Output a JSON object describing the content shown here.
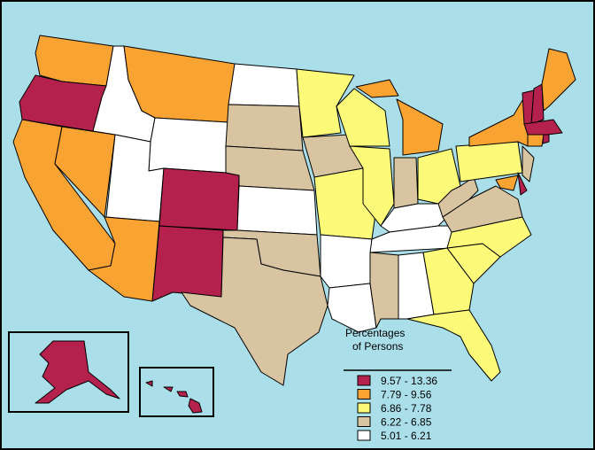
{
  "legend": {
    "title": [
      "Percentages",
      "of Persons"
    ],
    "items": [
      {
        "label": "9.57 - 13.36",
        "color": "#b3214c"
      },
      {
        "label": "7.79 - 9.56",
        "color": "#f9a332"
      },
      {
        "label": "6.86 - 7.78",
        "color": "#fcfa78"
      },
      {
        "label": "6.22 - 6.85",
        "color": "#d8c4a0"
      },
      {
        "label": "5.01 - 6.21",
        "color": "#ffffff"
      }
    ]
  }
}
